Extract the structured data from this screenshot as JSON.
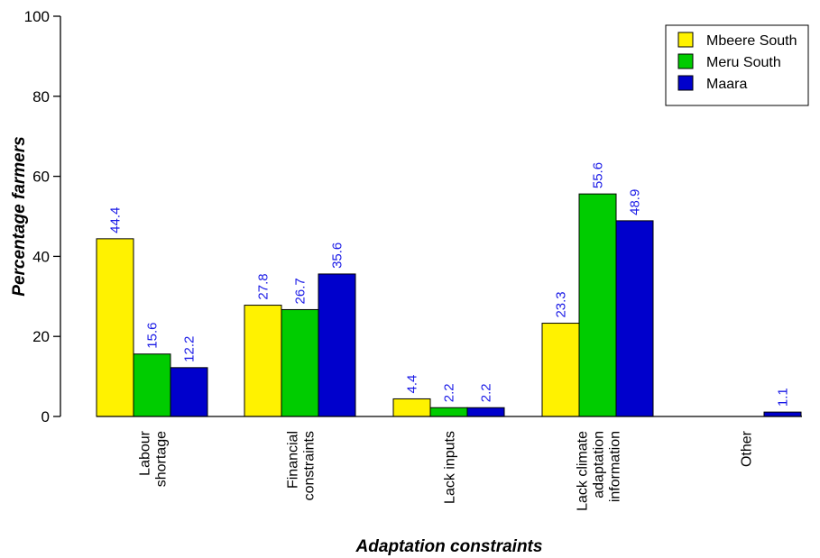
{
  "chart_data": {
    "type": "bar",
    "xlabel": "Adaptation constraints",
    "ylabel": "Percentage farmers",
    "ylim": [
      0,
      100
    ],
    "yticks": [
      0,
      20,
      40,
      60,
      80,
      100
    ],
    "grid": false,
    "legend_position": "top-right",
    "categories": [
      [
        "Labour",
        "shortage"
      ],
      [
        "Financial",
        "constraints"
      ],
      [
        "Lack inputs"
      ],
      [
        "Lack climate",
        "adaptation",
        "information"
      ],
      [
        "Other"
      ]
    ],
    "series": [
      {
        "name": "Mbeere South",
        "color": "#FFF200",
        "values": [
          44.4,
          27.8,
          4.4,
          23.3,
          0
        ],
        "labels": [
          "44.4",
          "27.8",
          "4.4",
          "23.3",
          ""
        ]
      },
      {
        "name": "Meru South",
        "color": "#00CC00",
        "values": [
          15.6,
          26.7,
          2.2,
          55.6,
          0
        ],
        "labels": [
          "15.6",
          "26.7",
          "2.2",
          "55.6",
          ""
        ]
      },
      {
        "name": "Maara",
        "color": "#0000CC",
        "values": [
          12.2,
          35.6,
          2.2,
          48.9,
          1.1
        ],
        "labels": [
          "12.2",
          "35.6",
          "2.2",
          "48.9",
          "1.1"
        ]
      }
    ],
    "data_label_color": "#1A1AE6"
  }
}
